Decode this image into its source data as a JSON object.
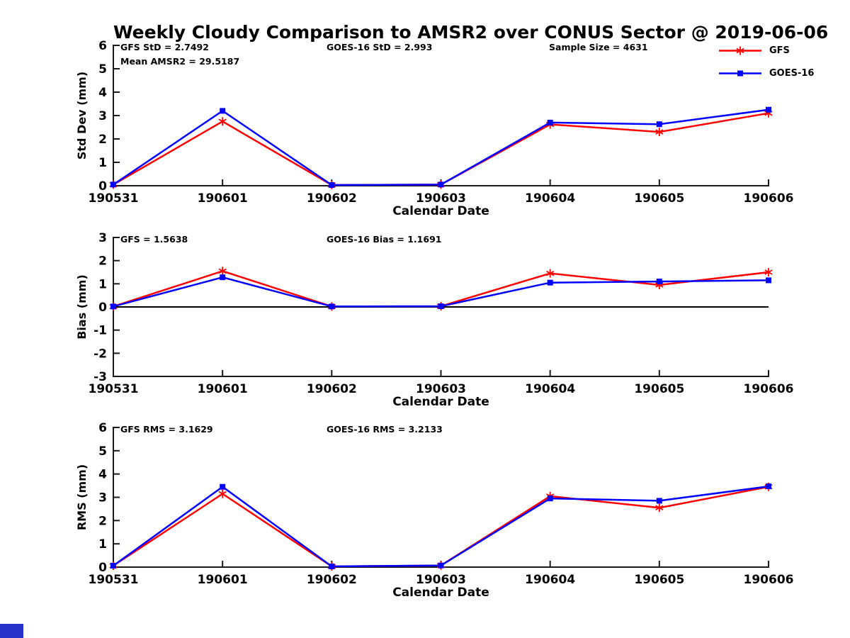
{
  "title": "Weekly Cloudy Comparison to AMSR2 over CONUS Sector @ 2019-06-06",
  "series_colors": {
    "gfs": "#ff0000",
    "goes16": "#0000ff"
  },
  "axis_color": "#1a1a1a",
  "text_color": "#000000",
  "decor": {
    "corner_square_color": "#2632c8"
  },
  "legend": {
    "position": "top-right",
    "items": [
      {
        "label": "GFS",
        "key": "gfs",
        "marker": "asterisk"
      },
      {
        "label": "GOES-16",
        "key": "goes16",
        "marker": "square"
      }
    ]
  },
  "chart_data": [
    {
      "id": "stddev",
      "type": "line",
      "categories": [
        "190531",
        "190601",
        "190602",
        "190603",
        "190604",
        "190605",
        "190606"
      ],
      "xlabel": "Calendar Date",
      "ylabel": "Std Dev (mm)",
      "ylim": [
        0,
        6
      ],
      "ytick_step": 1,
      "grid": false,
      "zero_line": false,
      "annotations": [
        {
          "text": "GFS StD = 2.7492",
          "slot": "left"
        },
        {
          "text": "Mean AMSR2 = 29.5187",
          "slot": "left2"
        },
        {
          "text": "GOES-16 StD = 2.993",
          "slot": "center"
        },
        {
          "text": "Sample Size = 4631",
          "slot": "right"
        }
      ],
      "series": [
        {
          "name": "GFS",
          "key": "gfs",
          "marker": "asterisk",
          "values": [
            0.05,
            2.75,
            0.03,
            0.05,
            2.62,
            2.3,
            3.1
          ]
        },
        {
          "name": "GOES-16",
          "key": "goes16",
          "marker": "square",
          "values": [
            0.05,
            3.2,
            0.03,
            0.05,
            2.7,
            2.63,
            3.25
          ]
        }
      ]
    },
    {
      "id": "bias",
      "type": "line",
      "categories": [
        "190531",
        "190601",
        "190602",
        "190603",
        "190604",
        "190605",
        "190606"
      ],
      "xlabel": "Calendar Date",
      "ylabel": "Bias (mm)",
      "ylim": [
        -3,
        3
      ],
      "ytick_step": 1,
      "grid": false,
      "zero_line": true,
      "annotations": [
        {
          "text": "GFS = 1.5638",
          "slot": "left"
        },
        {
          "text": "GOES-16 Bias  = 1.1691",
          "slot": "center"
        }
      ],
      "series": [
        {
          "name": "GFS",
          "key": "gfs",
          "marker": "asterisk",
          "values": [
            0.02,
            1.55,
            0.02,
            0.03,
            1.45,
            0.95,
            1.5
          ]
        },
        {
          "name": "GOES-16",
          "key": "goes16",
          "marker": "square",
          "values": [
            0.02,
            1.28,
            0.02,
            0.03,
            1.05,
            1.1,
            1.15
          ]
        }
      ]
    },
    {
      "id": "rms",
      "type": "line",
      "categories": [
        "190531",
        "190601",
        "190602",
        "190603",
        "190604",
        "190605",
        "190606"
      ],
      "xlabel": "Calendar Date",
      "ylabel": "RMS (mm)",
      "ylim": [
        0,
        6
      ],
      "ytick_step": 1,
      "grid": false,
      "zero_line": false,
      "annotations": [
        {
          "text": "GFS RMS = 3.1629",
          "slot": "left"
        },
        {
          "text": "GOES-16 RMS = 3.2133",
          "slot": "center"
        }
      ],
      "series": [
        {
          "name": "GFS",
          "key": "gfs",
          "marker": "asterisk",
          "values": [
            0.06,
            3.15,
            0.03,
            0.07,
            3.05,
            2.55,
            3.45
          ]
        },
        {
          "name": "GOES-16",
          "key": "goes16",
          "marker": "square",
          "values": [
            0.06,
            3.45,
            0.03,
            0.07,
            2.95,
            2.85,
            3.47
          ]
        }
      ]
    }
  ]
}
